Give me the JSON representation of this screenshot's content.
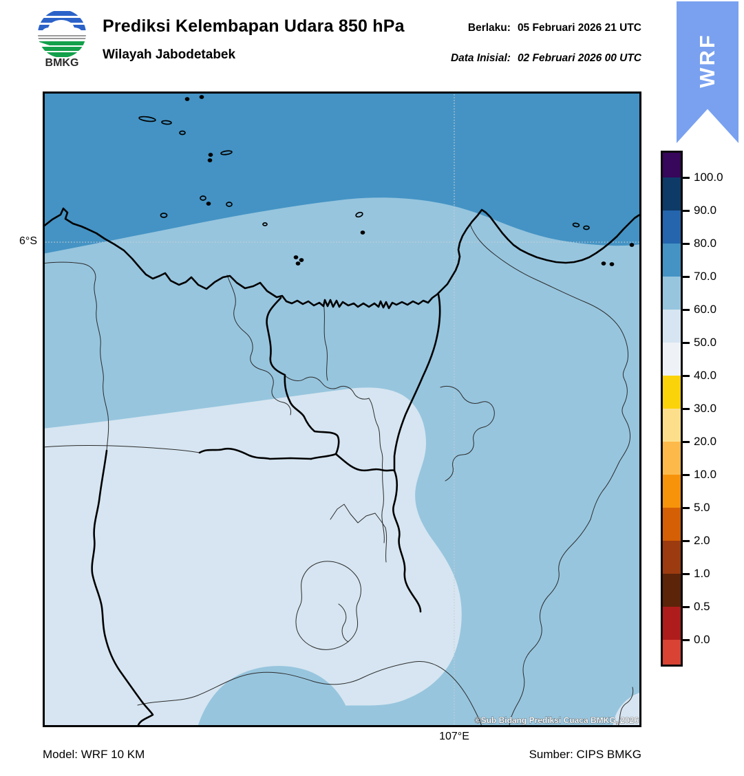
{
  "header": {
    "logo_text": "BMKG",
    "title": "Prediksi Kelembapan Udara 850 hPa",
    "subtitle": "Wilayah Jabodetabek",
    "valid_label": "Berlaku:",
    "valid_value": "05 Februari 2026 21 UTC",
    "initial_label": "Data Inisial:",
    "initial_value": "02 Februari 2026 00 UTC",
    "ribbon_label": "WRF",
    "ribbon_color": "#79A1F0"
  },
  "map": {
    "lat_tick": "6°S",
    "lon_tick": "107°E",
    "copyright": "©Sub Bidang Prediksi Cuaca BMKG, 2026",
    "fills": {
      "band_70_80": "#4493C4",
      "band_60_70": "#97C5DE",
      "band_50_60": "#D6E5F1"
    },
    "islands": [
      [
        210,
        11,
        2.5,
        2,
        0
      ],
      [
        231,
        8,
        2.5,
        2,
        0
      ],
      [
        152,
        40,
        12,
        3,
        8
      ],
      [
        180,
        45,
        7,
        2.5,
        5
      ],
      [
        203,
        60,
        4,
        2.5,
        0
      ],
      [
        244,
        92,
        2.5,
        2,
        0
      ],
      [
        243,
        100,
        2.5,
        2,
        0
      ],
      [
        267,
        89,
        8,
        2.5,
        -8
      ],
      [
        233,
        155,
        4,
        3,
        0
      ],
      [
        241,
        163,
        2.5,
        2,
        0
      ],
      [
        271,
        164,
        4,
        3,
        0
      ],
      [
        176,
        180,
        4.5,
        3,
        0
      ],
      [
        323,
        193,
        3,
        2,
        0
      ],
      [
        368,
        241,
        2.5,
        2,
        0
      ],
      [
        376,
        245,
        2.5,
        2,
        0
      ],
      [
        371,
        250,
        2.5,
        2,
        0
      ],
      [
        460,
        179,
        5,
        3,
        -20
      ],
      [
        465,
        205,
        2.5,
        2,
        0
      ],
      [
        775,
        194,
        4.5,
        2.5,
        10
      ],
      [
        790,
        198,
        4,
        2.5,
        0
      ],
      [
        856,
        223,
        2.5,
        2,
        0
      ],
      [
        815,
        250,
        2.5,
        2,
        0
      ],
      [
        827,
        251,
        2.5,
        2,
        0
      ]
    ]
  },
  "colorbar": {
    "unit": "%",
    "segments": [
      {
        "color": "#36075A",
        "label": "100.0"
      },
      {
        "color": "#0E3A67",
        "label": "90.0"
      },
      {
        "color": "#2565AE",
        "label": "80.0"
      },
      {
        "color": "#4493C4",
        "label": "70.0"
      },
      {
        "color": "#97C5DE",
        "label": "60.0"
      },
      {
        "color": "#D6E5F1",
        "label": "50.0"
      },
      {
        "color": "#EEF2F7",
        "label": "40.0"
      },
      {
        "color": "#FBD30B",
        "label": "30.0"
      },
      {
        "color": "#FDDF8B",
        "label": "20.0"
      },
      {
        "color": "#FDBA4A",
        "label": "10.0"
      },
      {
        "color": "#F6930B",
        "label": "5.0"
      },
      {
        "color": "#D55F05",
        "label": "2.0"
      },
      {
        "color": "#9C3B10",
        "label": "1.0"
      },
      {
        "color": "#5C2409",
        "label": "0.5"
      },
      {
        "color": "#AE1C1C",
        "label": "0.0"
      },
      {
        "color": "#D84334",
        "label": null
      }
    ]
  },
  "footer": {
    "model": "Model: WRF 10 KM",
    "source": "Sumber: CIPS BMKG"
  }
}
